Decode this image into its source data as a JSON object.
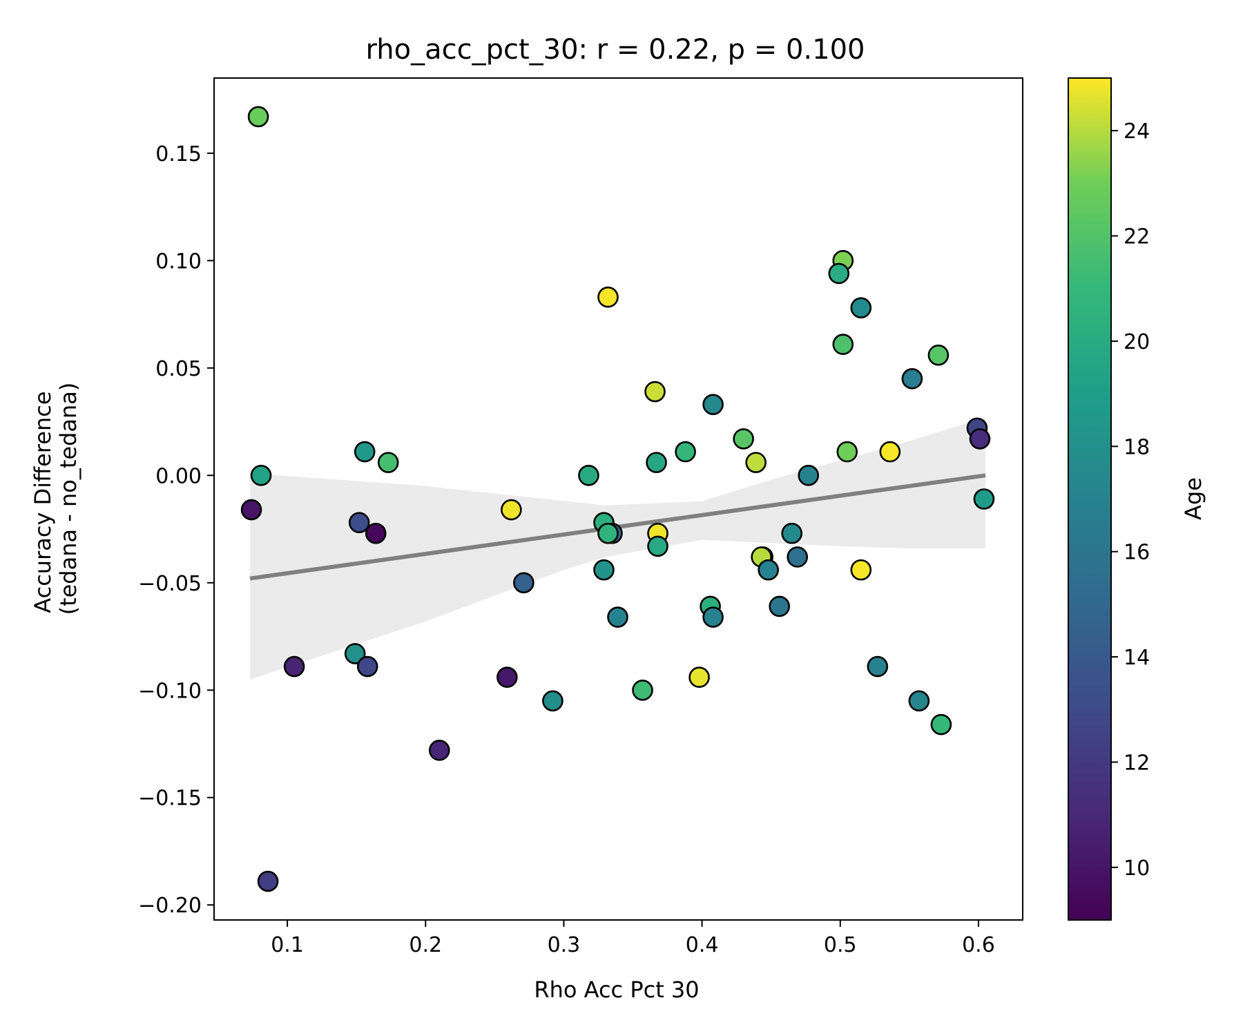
{
  "chart_data": {
    "type": "scatter",
    "title": "rho_acc_pct_30: r = 0.22, p = 0.100",
    "xlabel": "Rho Acc Pct 30",
    "ylabel_line1": "Accuracy Difference",
    "ylabel_line2": "(tedana - no_tedana)",
    "xlim": [
      0.047,
      0.632
    ],
    "ylim": [
      -0.207,
      0.185
    ],
    "x_ticks": [
      0.1,
      0.2,
      0.3,
      0.4,
      0.5,
      0.6
    ],
    "x_tick_labels": [
      "0.1",
      "0.2",
      "0.3",
      "0.4",
      "0.5",
      "0.6"
    ],
    "y_ticks": [
      0.15,
      0.1,
      0.05,
      0.0,
      -0.05,
      -0.1,
      -0.15,
      -0.2
    ],
    "y_tick_labels": [
      "0.15",
      "0.10",
      "0.05",
      "0.00",
      "−0.05",
      "−0.10",
      "−0.15",
      "−0.20"
    ],
    "colorbar": {
      "label": "Age",
      "range": [
        9,
        25
      ],
      "ticks": [
        10,
        12,
        14,
        16,
        18,
        20,
        22,
        24
      ],
      "tick_labels": [
        "10",
        "12",
        "14",
        "16",
        "18",
        "20",
        "22",
        "24"
      ],
      "colormap": "viridis"
    },
    "regression": {
      "x": [
        0.073,
        0.605
      ],
      "y": [
        -0.048,
        0.0
      ],
      "color": "#808080",
      "ci_color": "#ebebeb",
      "ci_upper": [
        [
          0.073,
          0.001
        ],
        [
          0.2,
          -0.005
        ],
        [
          0.33,
          -0.014
        ],
        [
          0.4,
          -0.012
        ],
        [
          0.45,
          -0.002
        ],
        [
          0.5,
          0.007
        ],
        [
          0.55,
          0.016
        ],
        [
          0.605,
          0.027
        ]
      ],
      "ci_lower": [
        [
          0.073,
          -0.095
        ],
        [
          0.2,
          -0.068
        ],
        [
          0.3,
          -0.044
        ],
        [
          0.33,
          -0.038
        ],
        [
          0.4,
          -0.03
        ],
        [
          0.5,
          -0.033
        ],
        [
          0.55,
          -0.034
        ],
        [
          0.605,
          -0.034
        ]
      ]
    },
    "points": [
      {
        "x": 0.079,
        "y": 0.167,
        "age": 22.8
      },
      {
        "x": 0.081,
        "y": 0.0,
        "age": 19.3
      },
      {
        "x": 0.074,
        "y": -0.016,
        "age": 10.0
      },
      {
        "x": 0.086,
        "y": -0.189,
        "age": 12.3
      },
      {
        "x": 0.105,
        "y": -0.089,
        "age": 10.8
      },
      {
        "x": 0.149,
        "y": -0.083,
        "age": 18.0
      },
      {
        "x": 0.152,
        "y": -0.022,
        "age": 13.2
      },
      {
        "x": 0.156,
        "y": 0.011,
        "age": 18.6
      },
      {
        "x": 0.158,
        "y": -0.089,
        "age": 12.8
      },
      {
        "x": 0.164,
        "y": -0.027,
        "age": 9.3
      },
      {
        "x": 0.173,
        "y": 0.006,
        "age": 21.6
      },
      {
        "x": 0.21,
        "y": -0.128,
        "age": 10.9
      },
      {
        "x": 0.259,
        "y": -0.094,
        "age": 10.2
      },
      {
        "x": 0.262,
        "y": -0.016,
        "age": 24.8
      },
      {
        "x": 0.271,
        "y": -0.05,
        "age": 14.6
      },
      {
        "x": 0.292,
        "y": -0.105,
        "age": 17.8
      },
      {
        "x": 0.318,
        "y": 0.0,
        "age": 19.9
      },
      {
        "x": 0.329,
        "y": -0.022,
        "age": 20.3
      },
      {
        "x": 0.329,
        "y": -0.044,
        "age": 18.2
      },
      {
        "x": 0.332,
        "y": 0.083,
        "age": 24.9
      },
      {
        "x": 0.335,
        "y": -0.027,
        "age": 15.1
      },
      {
        "x": 0.332,
        "y": -0.027,
        "age": 20.6
      },
      {
        "x": 0.339,
        "y": -0.066,
        "age": 17.0
      },
      {
        "x": 0.357,
        "y": -0.1,
        "age": 21.3
      },
      {
        "x": 0.366,
        "y": 0.039,
        "age": 24.3
      },
      {
        "x": 0.367,
        "y": 0.006,
        "age": 19.6
      },
      {
        "x": 0.368,
        "y": -0.027,
        "age": 24.8
      },
      {
        "x": 0.368,
        "y": -0.033,
        "age": 19.8
      },
      {
        "x": 0.388,
        "y": 0.011,
        "age": 20.8
      },
      {
        "x": 0.398,
        "y": -0.094,
        "age": 24.7
      },
      {
        "x": 0.406,
        "y": -0.061,
        "age": 20.4
      },
      {
        "x": 0.408,
        "y": -0.066,
        "age": 16.9
      },
      {
        "x": 0.408,
        "y": 0.033,
        "age": 17.4
      },
      {
        "x": 0.43,
        "y": 0.017,
        "age": 22.2
      },
      {
        "x": 0.439,
        "y": 0.006,
        "age": 24.1
      },
      {
        "x": 0.444,
        "y": -0.038,
        "age": 24.6
      },
      {
        "x": 0.443,
        "y": -0.038,
        "age": 24.0
      },
      {
        "x": 0.448,
        "y": -0.044,
        "age": 17.0
      },
      {
        "x": 0.456,
        "y": -0.061,
        "age": 16.0
      },
      {
        "x": 0.465,
        "y": -0.027,
        "age": 17.5
      },
      {
        "x": 0.469,
        "y": -0.038,
        "age": 15.6
      },
      {
        "x": 0.477,
        "y": 0.0,
        "age": 17.0
      },
      {
        "x": 0.502,
        "y": 0.1,
        "age": 23.2
      },
      {
        "x": 0.499,
        "y": 0.094,
        "age": 20.0
      },
      {
        "x": 0.502,
        "y": 0.061,
        "age": 21.8
      },
      {
        "x": 0.505,
        "y": 0.011,
        "age": 23.0
      },
      {
        "x": 0.515,
        "y": 0.078,
        "age": 17.6
      },
      {
        "x": 0.515,
        "y": -0.044,
        "age": 24.9
      },
      {
        "x": 0.527,
        "y": -0.089,
        "age": 16.9
      },
      {
        "x": 0.536,
        "y": 0.011,
        "age": 24.9
      },
      {
        "x": 0.552,
        "y": 0.045,
        "age": 16.6
      },
      {
        "x": 0.557,
        "y": -0.105,
        "age": 17.2
      },
      {
        "x": 0.571,
        "y": 0.056,
        "age": 22.2
      },
      {
        "x": 0.573,
        "y": -0.116,
        "age": 21.0
      },
      {
        "x": 0.599,
        "y": 0.022,
        "age": 12.7
      },
      {
        "x": 0.601,
        "y": 0.017,
        "age": 11.3
      },
      {
        "x": 0.604,
        "y": -0.011,
        "age": 18.8
      }
    ]
  }
}
